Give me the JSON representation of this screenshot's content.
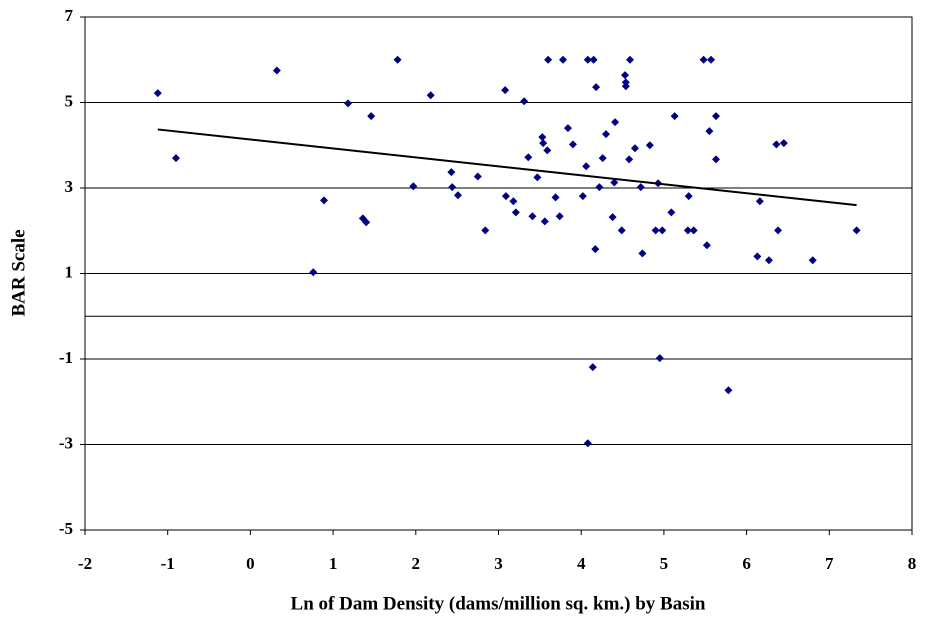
{
  "chart_data": {
    "type": "scatter",
    "x_label": "Ln of Dam Density (dams/million sq. km.) by Basin",
    "y_label": "BAR Scale",
    "color": "#000080",
    "x": [
      -1.12,
      -0.9,
      0.32,
      0.89,
      0.76,
      1.18,
      1.36,
      1.4,
      1.46,
      1.78,
      1.97,
      2.18,
      2.43,
      2.44,
      2.51,
      2.75,
      2.84,
      3.08,
      3.09,
      3.18,
      3.21,
      3.31,
      3.36,
      3.41,
      3.47,
      3.53,
      3.54,
      3.56,
      3.59,
      3.6,
      3.69,
      3.74,
      3.78,
      3.84,
      3.9,
      4.02,
      4.06,
      4.08,
      4.08,
      4.14,
      4.15,
      4.18,
      4.17,
      4.22,
      4.26,
      4.3,
      4.38,
      4.4,
      4.41,
      4.49,
      4.53,
      4.54,
      4.54,
      4.58,
      4.59,
      4.65,
      4.72,
      4.74,
      4.83,
      4.9,
      4.93,
      4.95,
      4.98,
      5.09,
      5.13,
      5.3,
      5.29,
      5.36,
      5.48,
      5.52,
      5.55,
      5.57,
      5.63,
      5.63,
      5.78,
      6.13,
      6.16,
      6.27,
      6.36,
      6.38,
      6.45,
      6.8,
      7.33
    ],
    "y": [
      5.22,
      3.7,
      5.75,
      2.71,
      1.03,
      4.98,
      2.29,
      2.2,
      4.68,
      6,
      3.04,
      5.17,
      3.37,
      3.02,
      2.83,
      3.27,
      2.01,
      5.29,
      2.81,
      2.69,
      2.43,
      5.03,
      3.72,
      2.34,
      3.25,
      4.19,
      4.05,
      2.22,
      3.88,
      6,
      2.78,
      2.34,
      6,
      4.4,
      4.02,
      2.81,
      3.51,
      6,
      -2.97,
      -1.19,
      6,
      5.36,
      1.57,
      3.02,
      3.7,
      4.26,
      2.32,
      3.13,
      4.54,
      2.01,
      5.64,
      5.47,
      5.38,
      3.67,
      6,
      3.93,
      3.02,
      1.47,
      4,
      2.01,
      3.11,
      -0.98,
      2.01,
      2.43,
      4.68,
      2.81,
      2.01,
      2.01,
      6,
      1.66,
      4.33,
      6,
      3.67,
      4.68,
      -1.73,
      1.4,
      2.69,
      1.31,
      4.02,
      2.01,
      4.05,
      1.31,
      2.01
    ],
    "trendline": {
      "x": [
        -1.12,
        7.33
      ],
      "y": [
        4.37,
        2.6
      ],
      "color": "#000000"
    },
    "xlim": [
      -2,
      8
    ],
    "xticks": [
      -2,
      -1,
      0,
      1,
      2,
      3,
      4,
      5,
      6,
      7,
      8
    ],
    "ylim": [
      -5,
      7
    ],
    "yticks": [
      -5,
      -3,
      -1,
      1,
      3,
      5,
      7
    ],
    "grid": true
  }
}
